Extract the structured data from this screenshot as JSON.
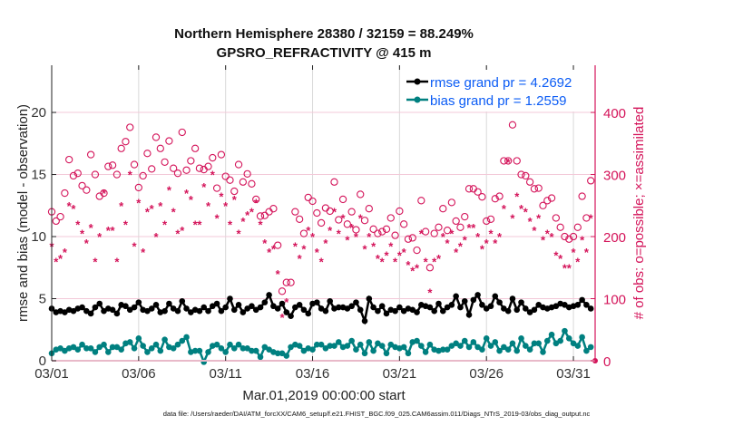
{
  "chart_data": {
    "type": "line",
    "title": [
      "Northern Hemisphere 28380 / 32159 = 88.249%",
      "GPSRO_REFRACTIVITY @ 415 m"
    ],
    "xlabel": "Mar.01,2019 00:00:00 start",
    "ylabel": "rmse and bias (model - observation)",
    "y2label": "# of obs: o=possible; ×=assimilated",
    "footnote": "data file: /Users/raeder/DAI/ATM_forcXX/CAM6_setup/f.e21.FHIST_BGC.f09_025.CAM6assim.011/Diags_NTrS_2019-03/obs_diag_output.nc",
    "x_unit": "days since Mar.01,2019 00:00:00",
    "x_start": 0,
    "x_step": 0.25,
    "xlim": [
      0,
      31.25
    ],
    "ylim": [
      0,
      23.8
    ],
    "y2lim": [
      0,
      476
    ],
    "xticks": [
      0,
      5,
      10,
      15,
      20,
      25,
      30
    ],
    "xtick_labels": [
      "03/01",
      "03/06",
      "03/11",
      "03/16",
      "03/21",
      "03/26",
      "03/31"
    ],
    "yticks": [
      0,
      5,
      10,
      15,
      20
    ],
    "yticks_labels": [
      "0",
      "5",
      "10",
      "15",
      "20"
    ],
    "y2ticks": [
      0,
      100,
      200,
      300,
      400
    ],
    "y2tick_labels": [
      "0",
      "100",
      "200",
      "300",
      "400"
    ],
    "grid": true,
    "legend_position": "top-right",
    "colors": {
      "rmse": "#000000",
      "bias": "#008080",
      "obs": "#d4145a",
      "legend_text": "#0b5cf5"
    },
    "series": [
      {
        "name": "rmse",
        "legend": "rmse grand pr = 4.2692",
        "axis": "left",
        "values": [
          4.2,
          3.9,
          4.0,
          3.9,
          4.1,
          4.0,
          4.2,
          4.3,
          4.0,
          3.8,
          4.3,
          4.6,
          4.0,
          4.2,
          4.1,
          3.8,
          4.5,
          4.4,
          4.1,
          4.3,
          4.7,
          4.1,
          4.0,
          4.2,
          4.5,
          3.9,
          4.0,
          4.6,
          4.2,
          4.0,
          4.8,
          4.2,
          3.9,
          4.1,
          4.0,
          4.3,
          4.0,
          4.4,
          4.6,
          4.0,
          4.3,
          5.0,
          4.1,
          4.5,
          3.9,
          4.2,
          4.4,
          4.1,
          4.3,
          4.7,
          5.3,
          4.4,
          4.2,
          4.6,
          3.9,
          3.6,
          4.3,
          4.5,
          4.1,
          3.8,
          4.6,
          4.7,
          4.2,
          4.0,
          4.8,
          4.2,
          4.3,
          4.3,
          4.2,
          4.4,
          4.7,
          4.1,
          3.2,
          5.0,
          4.3,
          4.0,
          4.4,
          3.8,
          4.1,
          4.0,
          4.3,
          4.0,
          4.2,
          4.1,
          3.9,
          4.5,
          4.4,
          4.3,
          4.0,
          4.6,
          4.0,
          4.3,
          4.5,
          5.2,
          4.3,
          4.8,
          3.7,
          4.9,
          5.3,
          4.5,
          4.2,
          4.4,
          5.2,
          4.7,
          4.2,
          4.0,
          5.0,
          4.1,
          4.7,
          4.2,
          3.9,
          4.1,
          4.5,
          4.3,
          4.2,
          4.3,
          4.4,
          4.6,
          4.5,
          4.3,
          4.4,
          4.5,
          4.9,
          4.5,
          4.2
        ]
      },
      {
        "name": "bias",
        "legend": "bias grand pr = 1.2559",
        "axis": "left",
        "values": [
          0.6,
          0.9,
          1.0,
          0.8,
          1.0,
          1.1,
          0.9,
          1.3,
          1.0,
          1.0,
          0.7,
          1.1,
          1.3,
          0.7,
          1.1,
          1.1,
          0.9,
          1.4,
          1.5,
          1.0,
          1.8,
          1.2,
          0.7,
          1.0,
          1.3,
          0.8,
          1.7,
          1.1,
          1.0,
          1.3,
          1.6,
          1.9,
          0.7,
          0.8,
          0.8,
          -0.1,
          0.7,
          1.2,
          1.3,
          1.0,
          0.7,
          1.3,
          1.0,
          1.3,
          1.0,
          1.0,
          0.8,
          0.8,
          0.3,
          1.1,
          0.9,
          0.7,
          0.6,
          0.6,
          0.4,
          1.1,
          1.3,
          1.2,
          0.8,
          1.0,
          0.9,
          1.3,
          1.3,
          1.0,
          1.2,
          1.2,
          1.5,
          1.1,
          1.2,
          1.6,
          0.9,
          1.3,
          0.6,
          1.5,
          0.8,
          1.4,
          1.2,
          0.6,
          1.3,
          1.1,
          1.0,
          1.1,
          0.6,
          1.5,
          1.6,
          1.2,
          0.7,
          1.3,
          0.9,
          0.8,
          0.9,
          0.9,
          1.2,
          1.4,
          1.2,
          1.6,
          1.1,
          1.5,
          1.1,
          0.9,
          1.8,
          1.2,
          1.5,
          0.8,
          1.1,
          0.9,
          1.4,
          0.8,
          1.8,
          1.2,
          0.9,
          1.4,
          1.4,
          0.7,
          1.6,
          2.1,
          1.4,
          1.6,
          2.4,
          1.8,
          1.4,
          1.2,
          1.9,
          0.8,
          1.1
        ]
      },
      {
        "name": "obs possible",
        "marker": "o",
        "axis": "right",
        "values": [
          240,
          225,
          232,
          270,
          324,
          298,
          302,
          282,
          275,
          332,
          300,
          265,
          270,
          313,
          315,
          300,
          342,
          353,
          376,
          316,
          279,
          298,
          334,
          309,
          360,
          342,
          320,
          354,
          310,
          302,
          368,
          307,
          322,
          342,
          310,
          308,
          313,
          327,
          278,
          332,
          297,
          291,
          273,
          316,
          288,
          301,
          285,
          260,
          233,
          234,
          240,
          245,
          186,
          112,
          126,
          126,
          240,
          228,
          205,
          263,
          257,
          238,
          222,
          246,
          241,
          288,
          227,
          260,
          220,
          240,
          211,
          268,
          226,
          245,
          212,
          205,
          208,
          212,
          230,
          202,
          241,
          220,
          196,
          198,
          178,
          258,
          208,
          150,
          205,
          215,
          245,
          210,
          255,
          225,
          215,
          232,
          277,
          277,
          272,
          264,
          225,
          228,
          261,
          265,
          322,
          322,
          380,
          322,
          300,
          298,
          288,
          277,
          278,
          250,
          258,
          262,
          230,
          215,
          200,
          196,
          200,
          215,
          265,
          230,
          290
        ]
      },
      {
        "name": "obs assimilated",
        "marker": "*",
        "axis": "right",
        "values": [
          185,
          160,
          165,
          175,
          250,
          245,
          220,
          205,
          190,
          215,
          160,
          200,
          270,
          210,
          210,
          160,
          250,
          220,
          300,
          185,
          255,
          175,
          240,
          245,
          200,
          250,
          220,
          275,
          240,
          205,
          210,
          270,
          260,
          220,
          220,
          280,
          250,
          300,
          230,
          265,
          250,
          220,
          260,
          205,
          225,
          235,
          240,
          255,
          220,
          190,
          175,
          180,
          140,
          70,
          95,
          70,
          185,
          165,
          180,
          210,
          200,
          175,
          160,
          190,
          210,
          240,
          205,
          230,
          195,
          215,
          200,
          230,
          180,
          200,
          185,
          165,
          160,
          170,
          185,
          160,
          170,
          175,
          155,
          145,
          150,
          205,
          160,
          110,
          160,
          165,
          200,
          190,
          205,
          175,
          185,
          195,
          215,
          215,
          200,
          180,
          190,
          205,
          190,
          200,
          245,
          320,
          230,
          265,
          245,
          240,
          225,
          210,
          230,
          195,
          205,
          200,
          170,
          165,
          150,
          150,
          175,
          160,
          195,
          175,
          230
        ]
      }
    ]
  }
}
